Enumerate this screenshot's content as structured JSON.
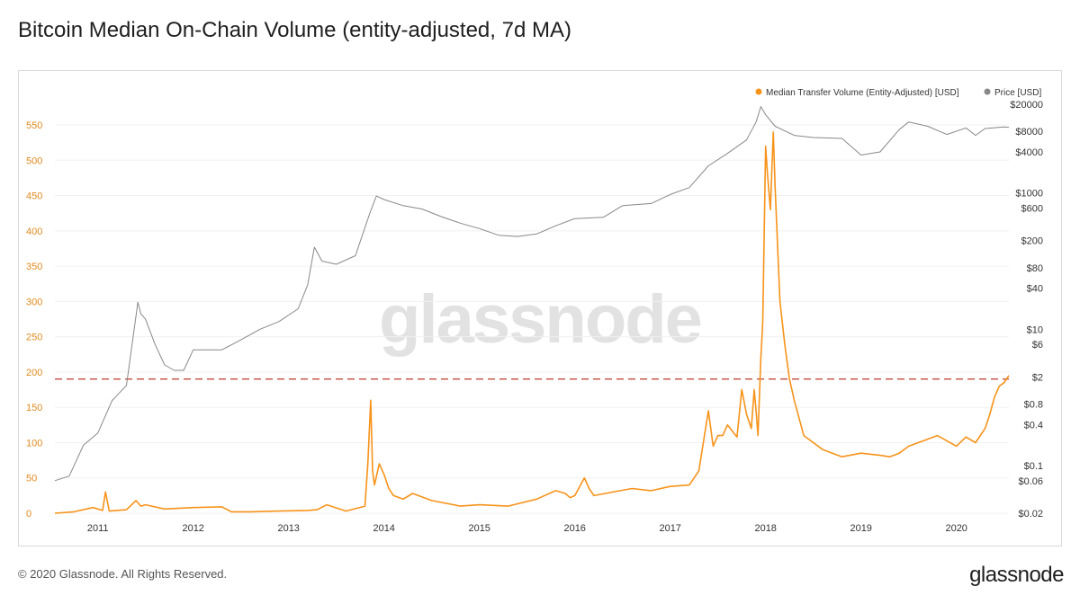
{
  "page": {
    "title": "Bitcoin Median On-Chain Volume (entity-adjusted, 7d MA)",
    "footer": "© 2020 Glassnode. All Rights Reserved.",
    "brand": "glassnode",
    "watermark": "glassnode"
  },
  "chart_data": {
    "type": "line",
    "title": "Bitcoin Median On-Chain Volume (entity-adjusted, 7d MA)",
    "legend_position": "top-right",
    "grid": true,
    "x_ticks": [
      "2011",
      "2012",
      "2013",
      "2014",
      "2015",
      "2016",
      "2017",
      "2018",
      "2019",
      "2020"
    ],
    "xlim": [
      2010.55,
      2020.55
    ],
    "y_left": {
      "ticks": [
        "0",
        "50",
        "100",
        "150",
        "200",
        "250",
        "300",
        "350",
        "400",
        "450",
        "500",
        "550"
      ],
      "ylim": [
        0,
        550
      ]
    },
    "y_right": {
      "scale": "log",
      "ticks": [
        "$20000",
        "$8000",
        "$4000",
        "$1000",
        "$600",
        "$200",
        "$80",
        "$40",
        "$10",
        "$6",
        "$2",
        "$0.8",
        "$0.4",
        "$0.1",
        "$0.06",
        "$0.02"
      ],
      "tick_values": [
        20000,
        8000,
        4000,
        1000,
        600,
        200,
        80,
        40,
        10,
        6,
        2,
        0.8,
        0.4,
        0.1,
        0.06,
        0.02
      ]
    },
    "reference_line": {
      "axis": "left",
      "value": 190,
      "color": "#c0392b",
      "style": "dashed"
    },
    "series": [
      {
        "name": "Median Transfer Volume (Entity-Adjusted) [USD]",
        "axis": "left",
        "color": "#f7931a",
        "x": [
          2010.55,
          2010.75,
          2010.95,
          2011.05,
          2011.08,
          2011.12,
          2011.3,
          2011.4,
          2011.45,
          2011.5,
          2011.7,
          2012.0,
          2012.3,
          2012.4,
          2012.6,
          2012.9,
          2013.2,
          2013.3,
          2013.4,
          2013.6,
          2013.8,
          2013.83,
          2013.86,
          2013.88,
          2013.9,
          2013.95,
          2014.0,
          2014.05,
          2014.1,
          2014.2,
          2014.3,
          2014.5,
          2014.8,
          2015.0,
          2015.3,
          2015.6,
          2015.8,
          2015.9,
          2015.95,
          2016.0,
          2016.1,
          2016.15,
          2016.2,
          2016.4,
          2016.6,
          2016.8,
          2017.0,
          2017.2,
          2017.3,
          2017.4,
          2017.45,
          2017.5,
          2017.55,
          2017.6,
          2017.7,
          2017.75,
          2017.8,
          2017.85,
          2017.88,
          2017.9,
          2017.92,
          2017.95,
          2017.97,
          2018.0,
          2018.02,
          2018.05,
          2018.08,
          2018.1,
          2018.15,
          2018.2,
          2018.25,
          2018.3,
          2018.4,
          2018.6,
          2018.8,
          2019.0,
          2019.2,
          2019.3,
          2019.4,
          2019.5,
          2019.6,
          2019.8,
          2020.0,
          2020.1,
          2020.2,
          2020.3,
          2020.35,
          2020.4,
          2020.45,
          2020.5,
          2020.55
        ],
        "values": [
          0,
          2,
          8,
          4,
          30,
          3,
          5,
          18,
          10,
          12,
          6,
          8,
          9,
          2,
          2,
          3,
          4,
          5,
          12,
          3,
          10,
          70,
          160,
          60,
          40,
          70,
          55,
          35,
          25,
          20,
          28,
          18,
          10,
          12,
          10,
          20,
          32,
          28,
          22,
          25,
          50,
          35,
          25,
          30,
          35,
          32,
          38,
          40,
          60,
          145,
          95,
          110,
          110,
          125,
          108,
          175,
          140,
          120,
          175,
          145,
          110,
          220,
          270,
          520,
          480,
          430,
          540,
          460,
          300,
          240,
          190,
          160,
          110,
          90,
          80,
          85,
          82,
          80,
          85,
          95,
          100,
          110,
          95,
          108,
          100,
          120,
          140,
          165,
          180,
          185,
          195
        ]
      },
      {
        "name": "Price [USD]",
        "axis": "right",
        "color": "#888888",
        "x": [
          2010.55,
          2010.7,
          2010.85,
          2011.0,
          2011.15,
          2011.3,
          2011.42,
          2011.45,
          2011.5,
          2011.6,
          2011.7,
          2011.8,
          2011.9,
          2012.0,
          2012.3,
          2012.5,
          2012.7,
          2012.9,
          2013.1,
          2013.2,
          2013.27,
          2013.35,
          2013.5,
          2013.7,
          2013.85,
          2013.92,
          2014.0,
          2014.2,
          2014.4,
          2014.6,
          2014.8,
          2015.0,
          2015.2,
          2015.4,
          2015.6,
          2015.8,
          2016.0,
          2016.3,
          2016.5,
          2016.8,
          2017.0,
          2017.2,
          2017.4,
          2017.6,
          2017.8,
          2017.9,
          2017.95,
          2018.0,
          2018.1,
          2018.3,
          2018.5,
          2018.8,
          2019.0,
          2019.2,
          2019.4,
          2019.5,
          2019.7,
          2019.9,
          2020.1,
          2020.2,
          2020.3,
          2020.5,
          2020.55
        ],
        "values": [
          0.06,
          0.07,
          0.2,
          0.3,
          0.9,
          1.5,
          25,
          17,
          14,
          6,
          3,
          2.5,
          2.5,
          5,
          5,
          7,
          10,
          13,
          20,
          45,
          160,
          100,
          90,
          120,
          500,
          900,
          800,
          650,
          580,
          450,
          360,
          300,
          240,
          230,
          250,
          330,
          420,
          440,
          650,
          700,
          950,
          1200,
          2500,
          3800,
          6000,
          11000,
          18500,
          14000,
          9500,
          7000,
          6500,
          6300,
          3600,
          4000,
          8500,
          11000,
          9500,
          7200,
          9000,
          7000,
          8800,
          9300,
          9200
        ]
      }
    ]
  }
}
